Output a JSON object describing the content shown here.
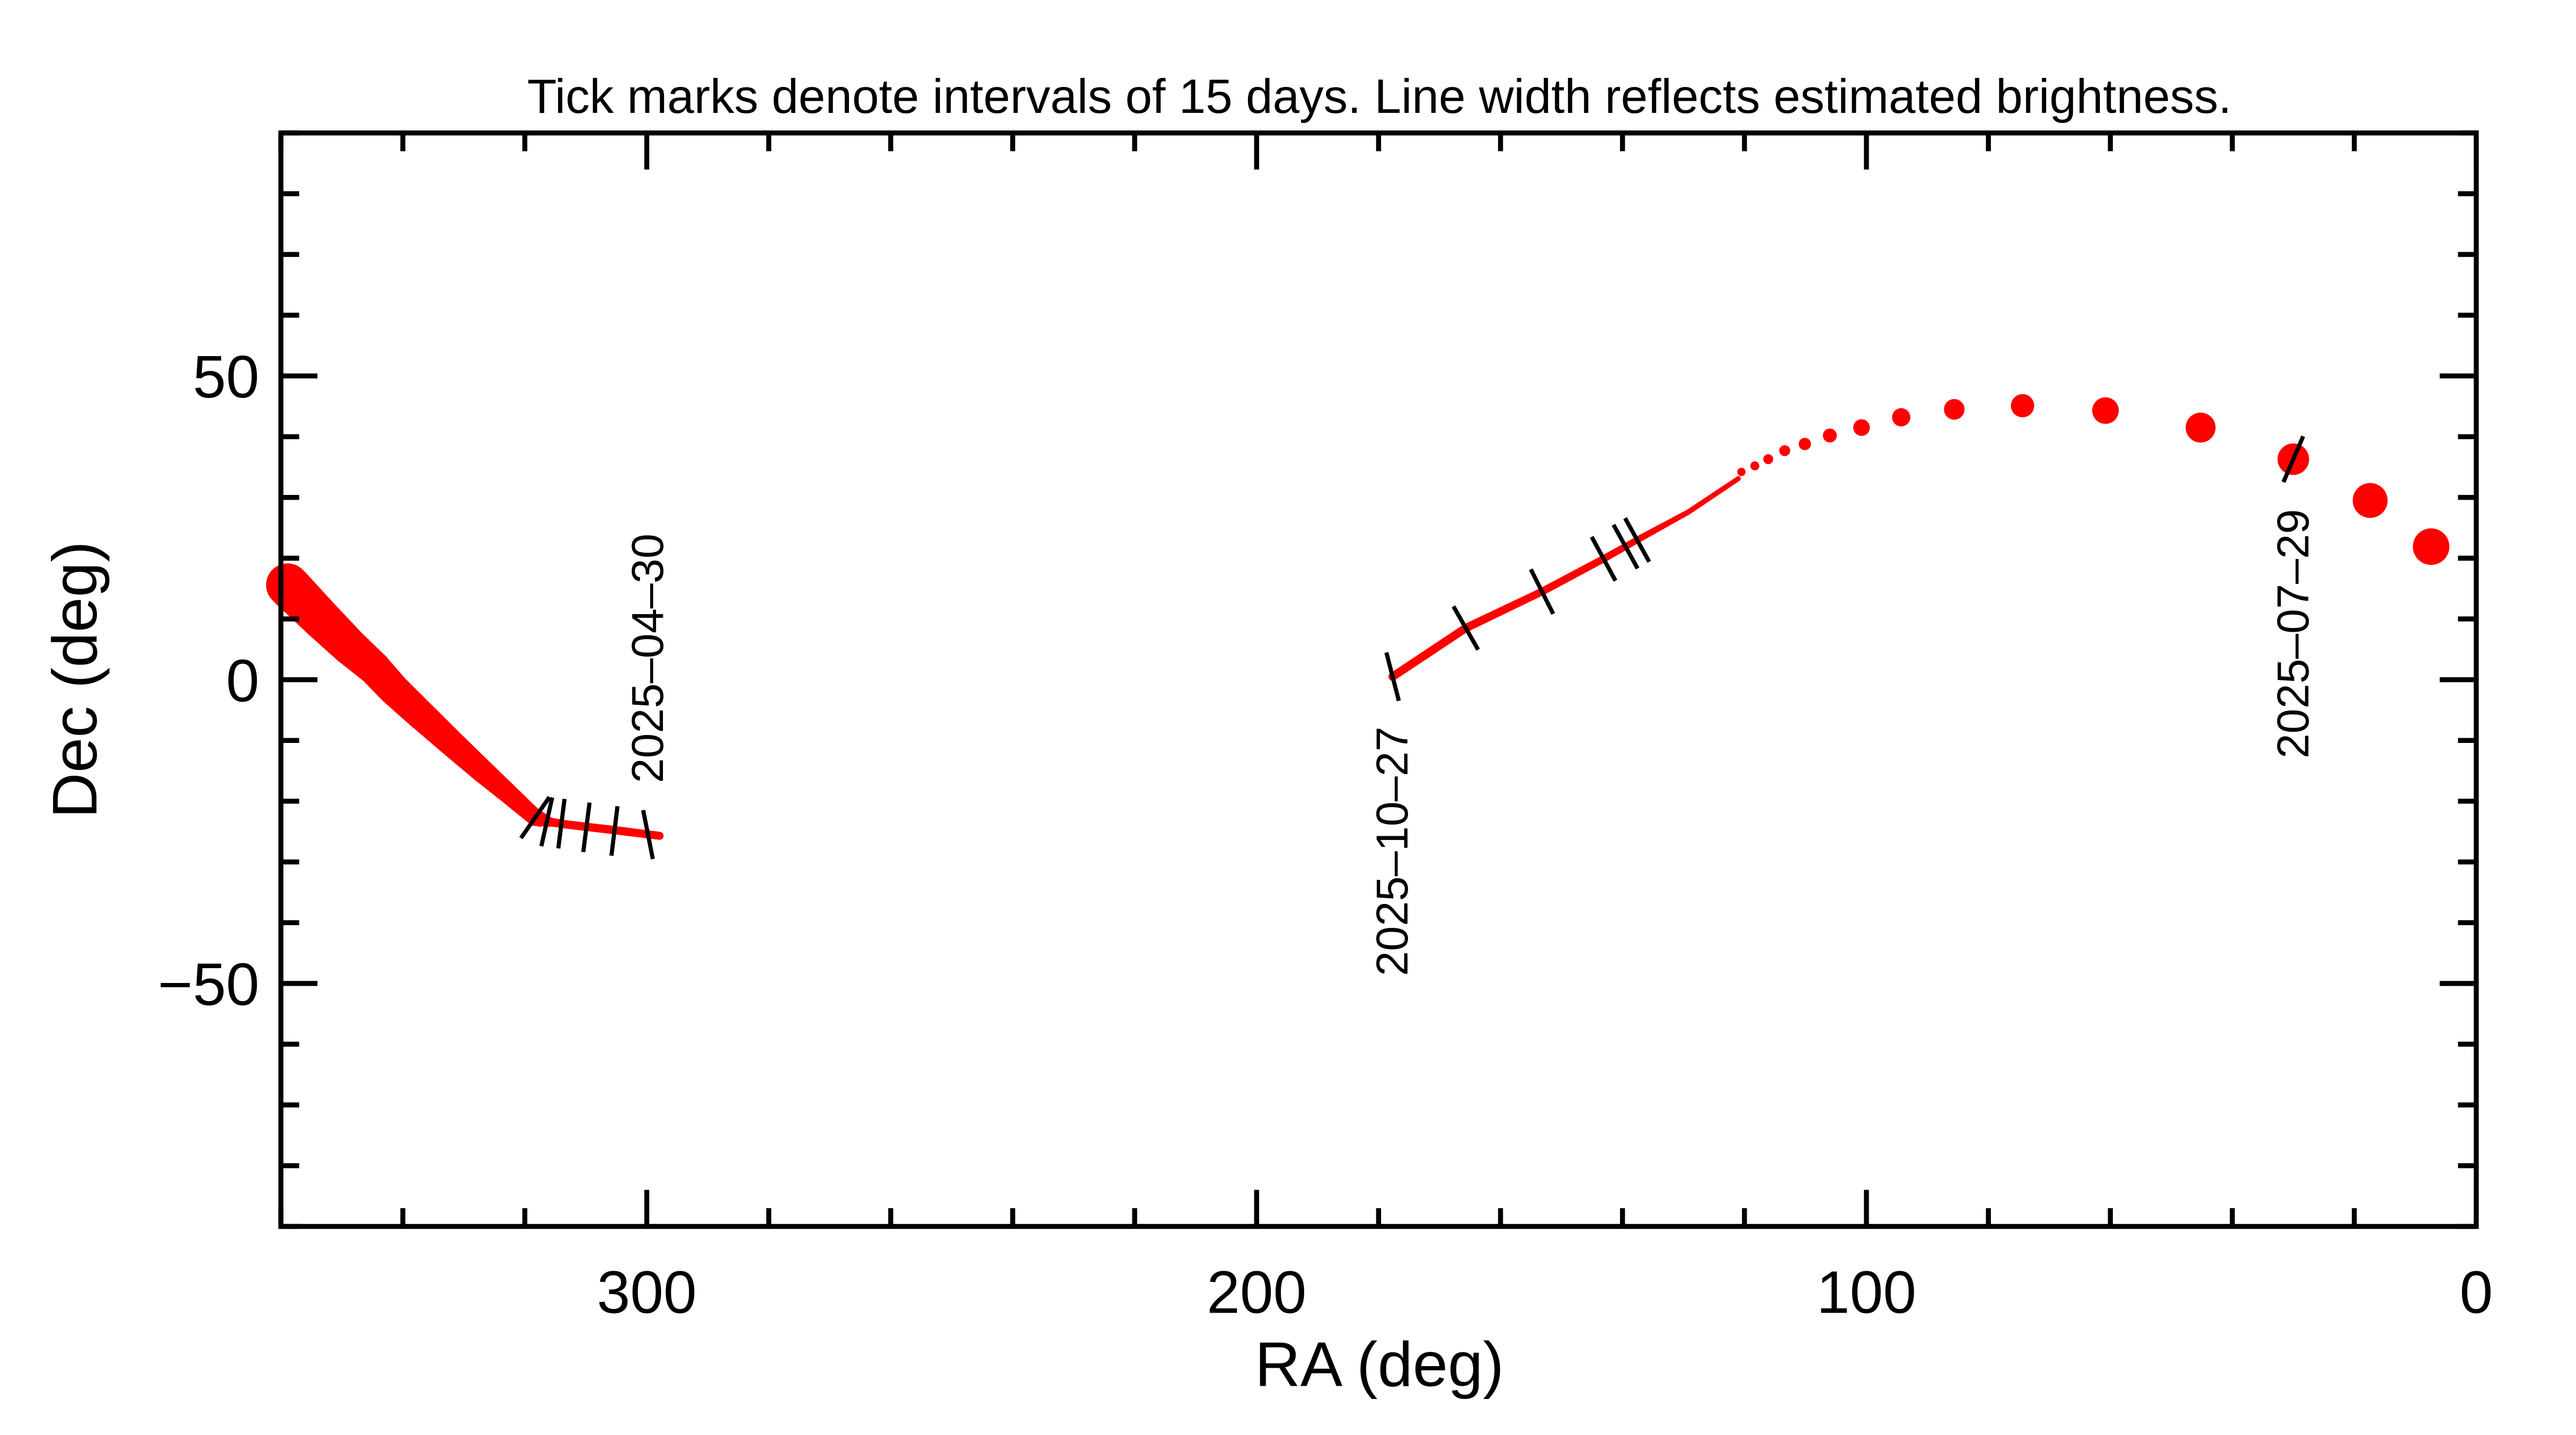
{
  "chart_data": {
    "type": "line",
    "title": "Tick marks denote intervals of 15 days.  Line width reflects estimated brightness.",
    "xlabel": "RA (deg)",
    "ylabel": "Dec (deg)",
    "xlim": [
      360,
      0
    ],
    "ylim": [
      -90,
      90
    ],
    "x_reversed": true,
    "grid": false,
    "x_ticks": [
      300,
      200,
      100,
      0
    ],
    "x_tick_labels": [
      "300",
      "200",
      "100",
      "0"
    ],
    "x_minor_step": 20,
    "y_ticks": [
      50,
      0,
      -50
    ],
    "y_tick_labels": [
      "50",
      "0",
      "−50"
    ],
    "y_minor_step": 10,
    "colors": {
      "track": "#ff0000",
      "ticks": "#000000",
      "axes": "#000000"
    },
    "tracks": [
      {
        "style": "line",
        "points_ra_dec_brightness": [
          [
            358.9,
            15.6,
            13
          ],
          [
            353.5,
            10.1,
            12
          ],
          [
            348.8,
            5.5,
            11
          ],
          [
            344.7,
            1.9,
            10
          ],
          [
            341.5,
            -1.6,
            9.5
          ],
          [
            337.9,
            -5.0,
            9
          ],
          [
            332.5,
            -10.0,
            8
          ],
          [
            327.0,
            -15.0,
            7
          ],
          [
            322.9,
            -18.6,
            6
          ],
          [
            318.3,
            -22.7,
            5
          ],
          [
            316.0,
            -23.4,
            2.6
          ],
          [
            313.4,
            -23.8,
            2.5
          ],
          [
            305.0,
            -24.8,
            2.5
          ],
          [
            297.9,
            -25.7,
            2.4
          ]
        ]
      },
      {
        "style": "line",
        "points_ra_dec_brightness": [
          [
            177.7,
            0.5,
            2.5
          ],
          [
            165.7,
            8.5,
            2.5
          ],
          [
            153.2,
            14.5,
            2.3
          ],
          [
            143.1,
            19.9,
            2.2
          ],
          [
            137.6,
            23.0,
            2.0
          ],
          [
            129.2,
            27.6,
            1.6
          ],
          [
            121.0,
            33.1,
            1.5
          ]
        ]
      },
      {
        "style": "dots",
        "points_ra_dec_brightness": [
          [
            120.5,
            34.2,
            2.5
          ],
          [
            118.3,
            35.2,
            2.7
          ],
          [
            116.1,
            36.3,
            3.0
          ],
          [
            113.4,
            37.7,
            3.3
          ],
          [
            110.1,
            38.8,
            3.7
          ],
          [
            106.0,
            40.2,
            4.2
          ],
          [
            100.8,
            41.5,
            5.0
          ],
          [
            94.3,
            43.2,
            5.5
          ],
          [
            85.6,
            44.5,
            6.2
          ],
          [
            74.4,
            45.1,
            7.0
          ],
          [
            60.8,
            44.3,
            8.0
          ],
          [
            45.2,
            41.5,
            9.0
          ],
          [
            30.0,
            36.3,
            9.5
          ],
          [
            17.4,
            29.5,
            10.5
          ],
          [
            7.4,
            21.9,
            11.0
          ]
        ]
      }
    ],
    "time_ticks_ra_dec": [
      [
        318.3,
        -22.7
      ],
      [
        316.4,
        -23.4
      ],
      [
        314.0,
        -23.7
      ],
      [
        309.9,
        -24.3
      ],
      [
        305.3,
        -24.9
      ],
      [
        299.8,
        -25.5
      ],
      [
        177.7,
        0.5
      ],
      [
        165.7,
        8.5
      ],
      [
        153.2,
        14.5
      ],
      [
        143.1,
        19.9
      ],
      [
        139.5,
        21.9
      ],
      [
        137.6,
        23.0
      ],
      [
        30.0,
        36.3
      ]
    ],
    "date_labels": [
      {
        "text": "2025–04–30",
        "ra": 299.8,
        "dec": -25.5,
        "position": "above"
      },
      {
        "text": "2025–10–27",
        "ra": 177.7,
        "dec": 0.5,
        "position": "below"
      },
      {
        "text": "2025–07–29",
        "ra": 30.0,
        "dec": 36.3,
        "position": "below"
      }
    ]
  }
}
